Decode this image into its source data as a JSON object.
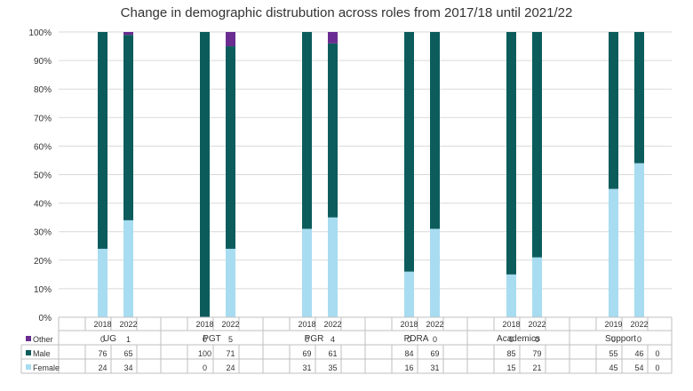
{
  "chart_data": {
    "type": "bar",
    "stacked": true,
    "percent_stacked": true,
    "title": "Change in demographic distrubution across roles from 2017/18 until 2021/22",
    "ylim": [
      0,
      100
    ],
    "yticks": [
      "0%",
      "10%",
      "20%",
      "30%",
      "40%",
      "50%",
      "60%",
      "70%",
      "80%",
      "90%",
      "100%"
    ],
    "groups": [
      {
        "name": "UG",
        "years": [
          "2018",
          "2022"
        ]
      },
      {
        "name": "PGT",
        "years": [
          "2018",
          "2022"
        ]
      },
      {
        "name": "PGR",
        "years": [
          "2018",
          "2022"
        ]
      },
      {
        "name": "PDRA",
        "years": [
          "2018",
          "2022"
        ]
      },
      {
        "name": "Academics",
        "years": [
          "2018",
          "2022"
        ]
      },
      {
        "name": "Support",
        "years": [
          "2019",
          "2022"
        ]
      }
    ],
    "series": [
      {
        "name": "Female",
        "color": "#a8dcf0",
        "values": [
          24,
          34,
          0,
          24,
          31,
          35,
          16,
          31,
          15,
          21,
          45,
          54
        ]
      },
      {
        "name": "Male",
        "color": "#0d5c5c",
        "values": [
          76,
          65,
          100,
          71,
          69,
          61,
          84,
          69,
          85,
          79,
          55,
          46
        ]
      },
      {
        "name": "Other",
        "color": "#6a2c91",
        "values": [
          0,
          1,
          0,
          5,
          0,
          4,
          0,
          0,
          0,
          0,
          0,
          0
        ]
      }
    ],
    "table_rows": [
      {
        "name": "Other",
        "values": [
          "0",
          "1",
          "0",
          "5",
          "0",
          "4",
          "0",
          "0",
          "0",
          "0",
          "0",
          "0"
        ],
        "extra": ""
      },
      {
        "name": "Male",
        "values": [
          "76",
          "65",
          "100",
          "71",
          "69",
          "61",
          "84",
          "69",
          "85",
          "79",
          "55",
          "46"
        ],
        "extra": "0"
      },
      {
        "name": "Female",
        "values": [
          "24",
          "34",
          "0",
          "24",
          "31",
          "35",
          "16",
          "31",
          "15",
          "21",
          "45",
          "54"
        ],
        "extra": "0"
      }
    ],
    "grid": true,
    "legend": "data table"
  }
}
